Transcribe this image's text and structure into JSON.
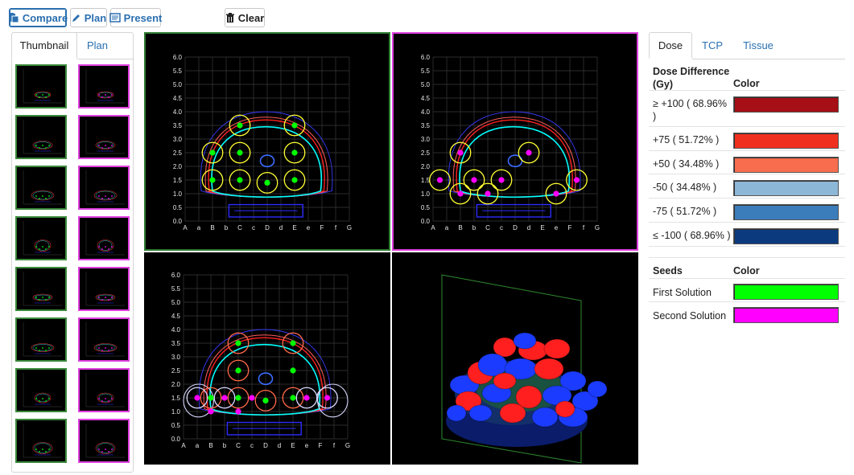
{
  "toolbar": {
    "compare_label": "Compare",
    "plan_label": "Plan",
    "present_label": "Present",
    "clear_label": "Clear"
  },
  "left_panel": {
    "tabs": [
      "Thumbnail",
      "Plan"
    ],
    "active_tab": "Thumbnail",
    "thumbnail_rows": 8
  },
  "grid": {
    "x_ticks": [
      "A",
      "a",
      "B",
      "b",
      "C",
      "c",
      "D",
      "d",
      "E",
      "e",
      "F",
      "f",
      "G"
    ],
    "y_ticks": [
      "0.0",
      "0.5",
      "1.0",
      "1.5",
      "2.0",
      "2.5",
      "3.0",
      "3.5",
      "4.0",
      "4.5",
      "5.0",
      "5.5",
      "6.0"
    ]
  },
  "right_panel": {
    "tabs": [
      "Dose",
      "TCP",
      "Tissue"
    ],
    "active_tab": "Dose",
    "dose_header": {
      "title_line1": "Dose Difference",
      "title_line2": "(Gy)",
      "color_header": "Color"
    },
    "dose_rows": [
      {
        "label_line1": "≥ +100 ( 68.96%",
        "label_line2": ")",
        "color": "#a50f15"
      },
      {
        "label_line1": "+75 ( 51.72% )",
        "label_line2": "",
        "color": "#f0301f"
      },
      {
        "label_line1": "+50 ( 34.48% )",
        "label_line2": "",
        "color": "#f76d4d"
      },
      {
        "label_line1": "-50 ( 34.48% )",
        "label_line2": "",
        "color": "#8db7d7"
      },
      {
        "label_line1": "-75 ( 51.72% )",
        "label_line2": "",
        "color": "#3b7dbb"
      },
      {
        "label_line1": "≤ -100 ( 68.96% )",
        "label_line2": "",
        "color": "#0b3a7e"
      }
    ],
    "seeds_header": {
      "title": "Seeds",
      "color_header": "Color"
    },
    "seed_rows": [
      {
        "label": "First Solution",
        "color": "#00ff00"
      },
      {
        "label": "Second Solution",
        "color": "#ff00ff"
      }
    ]
  },
  "colors": {
    "first_solution": "#00ff00",
    "second_solution": "#ff00ff",
    "view_a_border": "#2e7d32",
    "view_b_border": "#e040e0",
    "link_blue": "#2a6fb0"
  },
  "icons": {
    "compare": "clipboard-icon",
    "plan": "pencil-icon",
    "present": "presentation-icon",
    "clear": "trash-icon"
  }
}
